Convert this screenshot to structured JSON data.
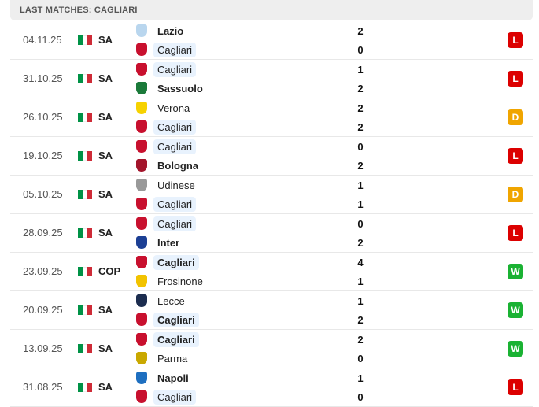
{
  "header": {
    "title": "LAST MATCHES: CAGLIARI"
  },
  "colors": {
    "L": "#dc0000",
    "D": "#f0a500",
    "W": "#1ab233",
    "highlight": "#e8f2fd"
  },
  "matches": [
    {
      "date": "04.11.25",
      "comp": "SA",
      "home": {
        "name": "Lazio",
        "logo": "#b9d6ee",
        "bold": true,
        "hl": false
      },
      "away": {
        "name": "Cagliari",
        "logo": "#c8102e",
        "bold": false,
        "hl": true
      },
      "home_score": "2",
      "away_score": "0",
      "result": "L"
    },
    {
      "date": "31.10.25",
      "comp": "SA",
      "home": {
        "name": "Cagliari",
        "logo": "#c8102e",
        "bold": false,
        "hl": true
      },
      "away": {
        "name": "Sassuolo",
        "logo": "#1b7a3a",
        "bold": true,
        "hl": false
      },
      "home_score": "1",
      "away_score": "2",
      "result": "L"
    },
    {
      "date": "26.10.25",
      "comp": "SA",
      "home": {
        "name": "Verona",
        "logo": "#f6d200",
        "bold": false,
        "hl": false
      },
      "away": {
        "name": "Cagliari",
        "logo": "#c8102e",
        "bold": false,
        "hl": true
      },
      "home_score": "2",
      "away_score": "2",
      "result": "D"
    },
    {
      "date": "19.10.25",
      "comp": "SA",
      "home": {
        "name": "Cagliari",
        "logo": "#c8102e",
        "bold": false,
        "hl": true
      },
      "away": {
        "name": "Bologna",
        "logo": "#a3152b",
        "bold": true,
        "hl": false
      },
      "home_score": "0",
      "away_score": "2",
      "result": "L"
    },
    {
      "date": "05.10.25",
      "comp": "SA",
      "home": {
        "name": "Udinese",
        "logo": "#999999",
        "bold": false,
        "hl": false
      },
      "away": {
        "name": "Cagliari",
        "logo": "#c8102e",
        "bold": false,
        "hl": true
      },
      "home_score": "1",
      "away_score": "1",
      "result": "D"
    },
    {
      "date": "28.09.25",
      "comp": "SA",
      "home": {
        "name": "Cagliari",
        "logo": "#c8102e",
        "bold": false,
        "hl": true
      },
      "away": {
        "name": "Inter",
        "logo": "#1c3f94",
        "bold": true,
        "hl": false
      },
      "home_score": "0",
      "away_score": "2",
      "result": "L"
    },
    {
      "date": "23.09.25",
      "comp": "COP",
      "home": {
        "name": "Cagliari",
        "logo": "#c8102e",
        "bold": true,
        "hl": true
      },
      "away": {
        "name": "Frosinone",
        "logo": "#f2c300",
        "bold": false,
        "hl": false
      },
      "home_score": "4",
      "away_score": "1",
      "result": "W"
    },
    {
      "date": "20.09.25",
      "comp": "SA",
      "home": {
        "name": "Lecce",
        "logo": "#1c2d4f",
        "bold": false,
        "hl": false
      },
      "away": {
        "name": "Cagliari",
        "logo": "#c8102e",
        "bold": true,
        "hl": true
      },
      "home_score": "1",
      "away_score": "2",
      "result": "W"
    },
    {
      "date": "13.09.25",
      "comp": "SA",
      "home": {
        "name": "Cagliari",
        "logo": "#c8102e",
        "bold": true,
        "hl": true
      },
      "away": {
        "name": "Parma",
        "logo": "#c9a800",
        "bold": false,
        "hl": false
      },
      "home_score": "2",
      "away_score": "0",
      "result": "W"
    },
    {
      "date": "31.08.25",
      "comp": "SA",
      "home": {
        "name": "Napoli",
        "logo": "#1e6fc0",
        "bold": true,
        "hl": false
      },
      "away": {
        "name": "Cagliari",
        "logo": "#c8102e",
        "bold": false,
        "hl": true
      },
      "home_score": "1",
      "away_score": "0",
      "result": "L"
    }
  ]
}
